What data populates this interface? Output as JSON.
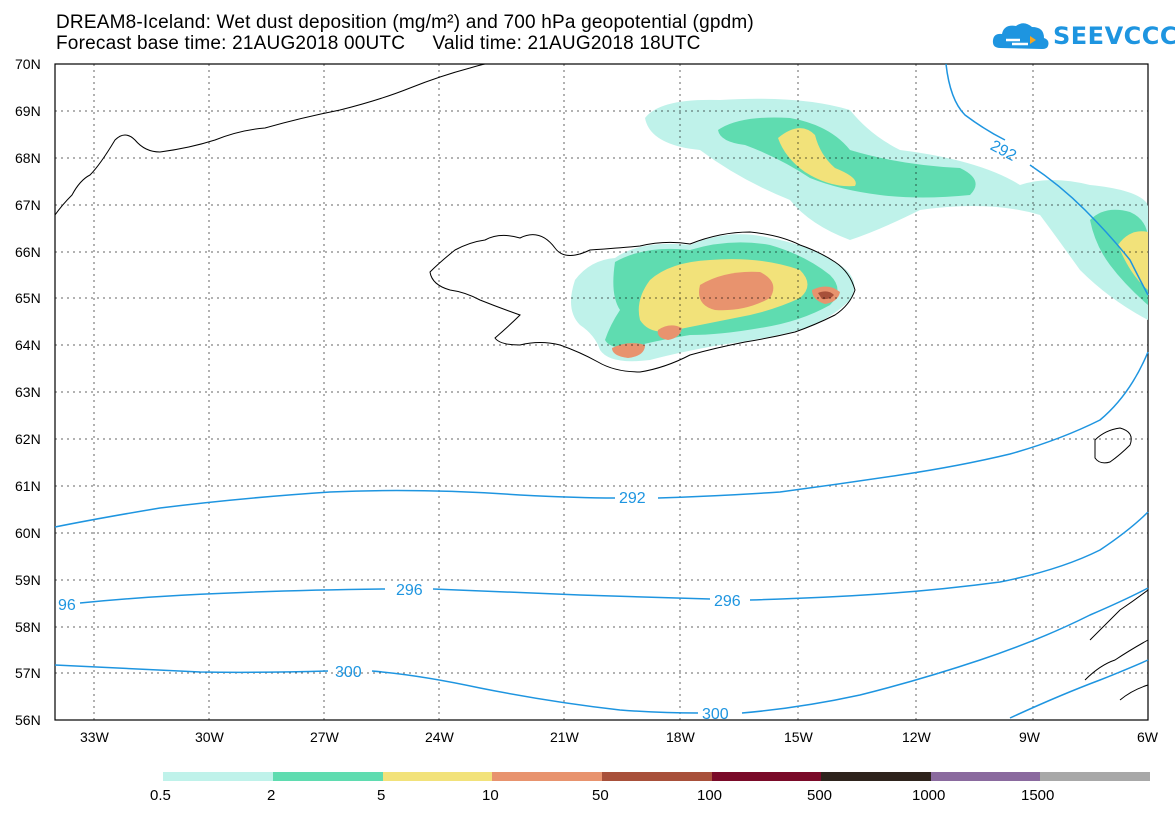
{
  "header": {
    "title_line1": "DREAM8-Iceland: Wet dust deposition (mg/m²) and 700 hPa geopotential (gpdm)",
    "title_line2": "Forecast base time: 21AUG2018 00UTC     Valid time: 21AUG2018 18UTC"
  },
  "logo": {
    "text": "SEEVCCC",
    "icon": "cloud-icon",
    "color": "#1e95e0"
  },
  "axes": {
    "lat_labels": [
      "70N",
      "69N",
      "68N",
      "67N",
      "66N",
      "65N",
      "64N",
      "63N",
      "62N",
      "61N",
      "60N",
      "59N",
      "58N",
      "57N",
      "56N"
    ],
    "lon_labels": [
      "33W",
      "30W",
      "27W",
      "24W",
      "21W",
      "18W",
      "15W",
      "12W",
      "9W",
      "6W"
    ]
  },
  "contours": {
    "color": "#1e95e0",
    "labels": [
      {
        "text": "292"
      },
      {
        "text": "292"
      },
      {
        "text": "296"
      },
      {
        "text": "296"
      },
      {
        "text": "96"
      },
      {
        "text": "300"
      },
      {
        "text": "300"
      }
    ]
  },
  "legend": {
    "colors": [
      "#bff2ea",
      "#5fdcb0",
      "#f2e27a",
      "#e8936e",
      "#a8503a",
      "#7a0a28",
      "#2e231c",
      "#8a6a9e",
      "#a8a8a8"
    ],
    "labels": [
      "0.5",
      "2",
      "5",
      "10",
      "50",
      "100",
      "500",
      "1000",
      "1500"
    ]
  }
}
